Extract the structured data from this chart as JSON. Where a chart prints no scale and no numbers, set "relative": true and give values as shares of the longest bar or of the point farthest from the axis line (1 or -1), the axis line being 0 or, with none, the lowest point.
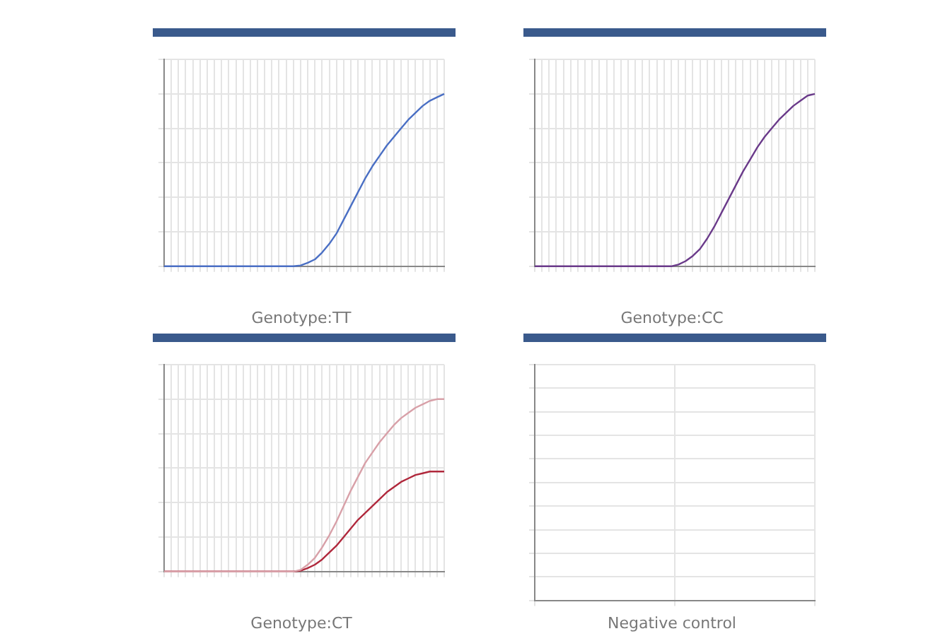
{
  "chart_data": [
    {
      "type": "line",
      "title": "Genotype:TT",
      "relative": true,
      "grid": true,
      "categories": [
        null,
        null,
        null,
        null,
        null,
        null,
        null,
        null,
        null,
        null,
        null,
        null,
        null,
        null,
        null,
        null,
        null,
        null,
        null,
        null,
        null,
        null,
        null,
        null,
        null,
        null,
        null,
        null,
        null,
        null,
        null,
        null,
        null,
        null,
        null,
        null,
        null,
        null,
        null,
        null
      ],
      "series": [
        {
          "color": "#4a6fc4",
          "values": [
            0,
            0,
            0,
            0,
            0,
            0,
            0,
            0,
            0,
            0,
            0,
            0,
            0,
            0,
            0,
            0,
            0,
            0,
            0,
            0.005,
            0.02,
            0.04,
            0.08,
            0.13,
            0.19,
            0.27,
            0.35,
            0.43,
            0.51,
            0.58,
            0.64,
            0.7,
            0.75,
            0.8,
            0.85,
            0.89,
            0.93,
            0.96,
            0.98,
            1
          ]
        }
      ]
    },
    {
      "type": "line",
      "title": "Genotype:CC",
      "relative": true,
      "grid": true,
      "categories": [
        null,
        null,
        null,
        null,
        null,
        null,
        null,
        null,
        null,
        null,
        null,
        null,
        null,
        null,
        null,
        null,
        null,
        null,
        null,
        null,
        null,
        null,
        null,
        null,
        null,
        null,
        null,
        null,
        null,
        null,
        null,
        null,
        null,
        null,
        null,
        null,
        null,
        null,
        null,
        null
      ],
      "series": [
        {
          "color": "#6a3a8a",
          "values": [
            0,
            0,
            0,
            0,
            0,
            0,
            0,
            0,
            0,
            0,
            0,
            0,
            0,
            0,
            0,
            0,
            0,
            0,
            0,
            0,
            0.01,
            0.03,
            0.06,
            0.1,
            0.16,
            0.23,
            0.31,
            0.39,
            0.47,
            0.55,
            0.62,
            0.69,
            0.75,
            0.8,
            0.85,
            0.89,
            0.93,
            0.96,
            0.99,
            1
          ]
        }
      ]
    },
    {
      "type": "line",
      "title": "Genotype:CT",
      "relative": true,
      "grid": true,
      "categories": [
        null,
        null,
        null,
        null,
        null,
        null,
        null,
        null,
        null,
        null,
        null,
        null,
        null,
        null,
        null,
        null,
        null,
        null,
        null,
        null,
        null,
        null,
        null,
        null,
        null,
        null,
        null,
        null,
        null,
        null,
        null,
        null,
        null,
        null,
        null,
        null,
        null,
        null,
        null,
        null
      ],
      "series": [
        {
          "color": "#d8a0a8",
          "values": [
            0,
            0,
            0,
            0,
            0,
            0,
            0,
            0,
            0,
            0,
            0,
            0,
            0,
            0,
            0,
            0,
            0,
            0,
            0,
            0.01,
            0.04,
            0.08,
            0.14,
            0.21,
            0.29,
            0.38,
            0.47,
            0.55,
            0.63,
            0.69,
            0.75,
            0.8,
            0.85,
            0.89,
            0.92,
            0.95,
            0.97,
            0.99,
            1,
            1
          ]
        },
        {
          "color": "#b0283c",
          "values": [
            0,
            0,
            0,
            0,
            0,
            0,
            0,
            0,
            0,
            0,
            0,
            0,
            0,
            0,
            0,
            0,
            0,
            0,
            0,
            0.005,
            0.02,
            0.04,
            0.07,
            0.11,
            0.15,
            0.2,
            0.25,
            0.3,
            0.34,
            0.38,
            0.42,
            0.46,
            0.49,
            0.52,
            0.54,
            0.56,
            0.57,
            0.58,
            0.58,
            0.58
          ]
        }
      ]
    },
    {
      "type": "other",
      "title": "Negative control"
    }
  ]
}
